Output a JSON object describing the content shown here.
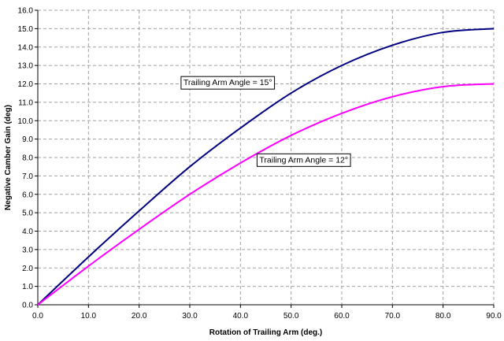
{
  "chart_data": {
    "type": "line",
    "title": "",
    "xlabel": "Rotation of Trailing Arm (deg.)",
    "ylabel": "Negative Camber Gain (deg)",
    "xlim": [
      0,
      90
    ],
    "ylim": [
      0,
      16
    ],
    "xticks": [
      0,
      10,
      20,
      30,
      40,
      50,
      60,
      70,
      80,
      90
    ],
    "xtick_labels": [
      "0.0",
      "10.0",
      "20.0",
      "30.0",
      "40.0",
      "50.0",
      "60.0",
      "70.0",
      "80.0",
      "90.0"
    ],
    "yticks": [
      0,
      1,
      2,
      3,
      4,
      5,
      6,
      7,
      8,
      9,
      10,
      11,
      12,
      13,
      14,
      15,
      16
    ],
    "ytick_labels": [
      "0.0",
      "1.0",
      "2.0",
      "3.0",
      "4.0",
      "5.0",
      "6.0",
      "7.0",
      "8.0",
      "9.0",
      "10.0",
      "11.0",
      "12.0",
      "13.0",
      "14.0",
      "15.0",
      "16.0"
    ],
    "grid": true,
    "legend": "none",
    "series": [
      {
        "color": "#000080",
        "x": [
          0,
          10,
          20,
          30,
          40,
          50,
          60,
          70,
          80,
          90
        ],
        "y": [
          0,
          2.6,
          5.1,
          7.5,
          9.6,
          11.5,
          13.0,
          14.1,
          14.8,
          15.0
        ]
      },
      {
        "color": "#ff00ff",
        "x": [
          0,
          10,
          20,
          30,
          40,
          50,
          60,
          70,
          80,
          90
        ],
        "y": [
          0,
          2.1,
          4.1,
          6.0,
          7.7,
          9.2,
          10.4,
          11.3,
          11.85,
          12.0
        ]
      }
    ],
    "annotations": [
      {
        "text": "Trailing Arm Angle = 15°",
        "x": 37.5,
        "y": 12.1
      },
      {
        "text": "Trailing Arm Angle = 12°",
        "x": 52.5,
        "y": 7.9
      }
    ]
  }
}
